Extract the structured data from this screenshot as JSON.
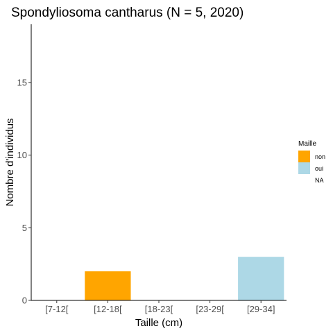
{
  "chart_data": {
    "type": "bar",
    "title": "Spondyliosoma cantharus (N = 5, 2020)",
    "xlabel": "Taille (cm)",
    "ylabel": "Nombre d'individus",
    "categories": [
      "[7-12[",
      "[12-18[",
      "[18-23[",
      "[23-29[",
      "[29-34]"
    ],
    "series": [
      {
        "name": "non",
        "color": "#FFA500",
        "values": [
          0,
          2,
          0,
          0,
          0
        ]
      },
      {
        "name": "oui",
        "color": "#ADD8E6",
        "values": [
          0,
          0,
          0,
          0,
          3
        ]
      },
      {
        "name": "NA",
        "color": "#FFFFFF",
        "values": [
          0,
          0,
          0,
          0,
          0
        ]
      }
    ],
    "ylim": [
      0,
      19
    ],
    "yticks": [
      0,
      5,
      10,
      15
    ],
    "grid": false,
    "legend": {
      "title": "Maille",
      "position": "right"
    }
  }
}
